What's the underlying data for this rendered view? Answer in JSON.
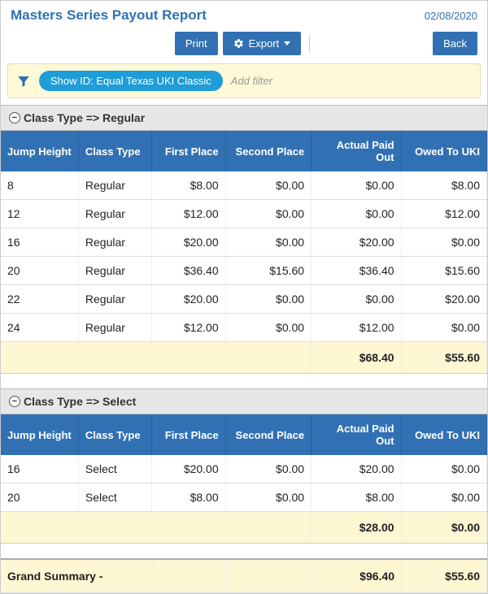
{
  "header": {
    "title": "Masters Series Payout Report",
    "date": "02/08/2020"
  },
  "toolbar": {
    "print": "Print",
    "export": "Export",
    "back": "Back"
  },
  "filter": {
    "chip": "Show ID: Equal Texas UKI Classic",
    "add": "Add filter"
  },
  "columns": {
    "jump": "Jump Height",
    "ctype": "Class Type",
    "first": "First Place",
    "second": "Second Place",
    "actual": "Actual Paid Out",
    "owed": "Owed To UKI"
  },
  "groups": [
    {
      "label": "Class Type => Regular",
      "rows": [
        {
          "jump": "8",
          "ctype": "Regular",
          "first": "$8.00",
          "second": "$0.00",
          "actual": "$0.00",
          "owed": "$8.00"
        },
        {
          "jump": "12",
          "ctype": "Regular",
          "first": "$12.00",
          "second": "$0.00",
          "actual": "$0.00",
          "owed": "$12.00"
        },
        {
          "jump": "16",
          "ctype": "Regular",
          "first": "$20.00",
          "second": "$0.00",
          "actual": "$20.00",
          "owed": "$0.00"
        },
        {
          "jump": "20",
          "ctype": "Regular",
          "first": "$36.40",
          "second": "$15.60",
          "actual": "$36.40",
          "owed": "$15.60"
        },
        {
          "jump": "22",
          "ctype": "Regular",
          "first": "$20.00",
          "second": "$0.00",
          "actual": "$0.00",
          "owed": "$20.00"
        },
        {
          "jump": "24",
          "ctype": "Regular",
          "first": "$12.00",
          "second": "$0.00",
          "actual": "$12.00",
          "owed": "$0.00"
        }
      ],
      "subtotal": {
        "actual": "$68.40",
        "owed": "$55.60"
      }
    },
    {
      "label": "Class Type => Select",
      "rows": [
        {
          "jump": "16",
          "ctype": "Select",
          "first": "$20.00",
          "second": "$0.00",
          "actual": "$20.00",
          "owed": "$0.00"
        },
        {
          "jump": "20",
          "ctype": "Select",
          "first": "$8.00",
          "second": "$0.00",
          "actual": "$8.00",
          "owed": "$0.00"
        }
      ],
      "subtotal": {
        "actual": "$28.00",
        "owed": "$0.00"
      }
    }
  ],
  "grand": {
    "label": "Grand Summary -",
    "actual": "$96.40",
    "owed": "$55.60"
  },
  "colors": {
    "primary": "#3171b3",
    "chip": "#1e9dd8",
    "highlight": "#fdf7d3",
    "filterbar": "#fef9d7"
  }
}
